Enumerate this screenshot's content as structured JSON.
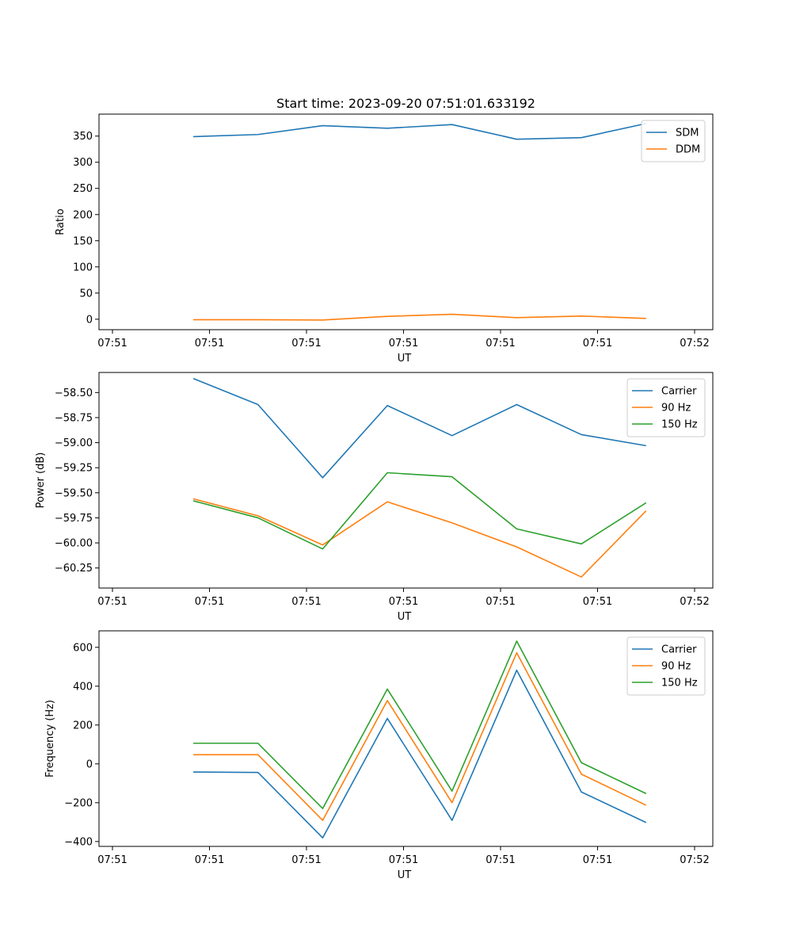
{
  "chart_data": [
    {
      "type": "line",
      "title": "Start time: 2023-09-20 07:51:01.633192",
      "xlabel": "UT",
      "ylabel": "Ratio",
      "xticklabels": [
        "07:51",
        "07:51",
        "07:51",
        "07:51",
        "07:51",
        "07:51",
        "07:52"
      ],
      "xlim": [
        -0.2,
        9.0
      ],
      "ylim": [
        -20,
        392
      ],
      "yticks": [
        0,
        50,
        100,
        150,
        200,
        250,
        300,
        350
      ],
      "yticklabels": [
        "0",
        "50",
        "100",
        "150",
        "200",
        "250",
        "300",
        "350"
      ],
      "x": [
        0.75,
        1.75,
        2.75,
        3.75,
        4.75,
        5.75,
        6.75,
        7.75
      ],
      "legend_position": "upper-right",
      "series": [
        {
          "name": "SDM",
          "color": "#1f77b4",
          "values": [
            349,
            353,
            370,
            365,
            372,
            344,
            347,
            374
          ]
        },
        {
          "name": "DDM",
          "color": "#ff7f0e",
          "values": [
            -1,
            -1,
            -1.5,
            5.5,
            9.5,
            3,
            6,
            1.5
          ]
        }
      ]
    },
    {
      "type": "line",
      "title": "",
      "xlabel": "UT",
      "ylabel": "Power (dB)",
      "xticklabels": [
        "07:51",
        "07:51",
        "07:51",
        "07:51",
        "07:51",
        "07:51",
        "07:52"
      ],
      "xlim": [
        -0.2,
        9.0
      ],
      "ylim": [
        -60.45,
        -58.3
      ],
      "yticks": [
        -60.25,
        -60.0,
        -59.75,
        -59.5,
        -59.25,
        -59.0,
        -58.75,
        -58.5
      ],
      "yticklabels": [
        "−60.25",
        "−60.00",
        "−59.75",
        "−59.50",
        "−59.25",
        "−59.00",
        "−58.75",
        "−58.50"
      ],
      "x": [
        0.75,
        1.75,
        2.75,
        3.75,
        4.75,
        5.75,
        6.75,
        7.75
      ],
      "legend_position": "upper-right",
      "series": [
        {
          "name": "Carrier",
          "color": "#1f77b4",
          "values": [
            -58.36,
            -58.62,
            -59.35,
            -58.63,
            -58.93,
            -58.62,
            -58.92,
            -59.03
          ]
        },
        {
          "name": "90 Hz",
          "color": "#ff7f0e",
          "values": [
            -59.56,
            -59.73,
            -60.02,
            -59.59,
            -59.8,
            -60.04,
            -60.34,
            -59.68
          ]
        },
        {
          "name": "150 Hz",
          "color": "#2ca02c",
          "values": [
            -59.58,
            -59.75,
            -60.06,
            -59.3,
            -59.34,
            -59.86,
            -60.01,
            -59.6
          ]
        }
      ]
    },
    {
      "type": "line",
      "title": "",
      "xlabel": "UT",
      "ylabel": "Frequency (Hz)",
      "xticklabels": [
        "07:51",
        "07:51",
        "07:51",
        "07:51",
        "07:51",
        "07:51",
        "07:52"
      ],
      "xlim": [
        -0.2,
        9.0
      ],
      "ylim": [
        -425,
        685
      ],
      "yticks": [
        -400,
        -200,
        0,
        200,
        400,
        600
      ],
      "yticklabels": [
        "−400",
        "−200",
        "0",
        "200",
        "400",
        "600"
      ],
      "x": [
        0.75,
        1.75,
        2.75,
        3.75,
        4.75,
        5.75,
        6.75,
        7.75
      ],
      "legend_position": "upper-right",
      "series": [
        {
          "name": "Carrier",
          "color": "#1f77b4",
          "values": [
            -42,
            -44,
            -381,
            234,
            -291,
            482,
            -145,
            -302
          ]
        },
        {
          "name": "90 Hz",
          "color": "#ff7f0e",
          "values": [
            47,
            47,
            -291,
            326,
            -200,
            572,
            -53,
            -213
          ]
        },
        {
          "name": "150 Hz",
          "color": "#2ca02c",
          "values": [
            106,
            106,
            -230,
            385,
            -140,
            632,
            6,
            -153
          ]
        }
      ]
    }
  ]
}
